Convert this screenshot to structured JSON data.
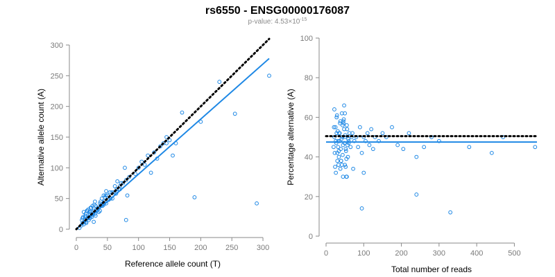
{
  "title": "rs6550 - ENSG00000176087",
  "subtitle_prefix": "p-value: 4.53×10",
  "subtitle_exp": "-15",
  "colors": {
    "points": "#1e88e5",
    "fit": "#1e88e5",
    "reference": "#000000",
    "axis": "#8a8a8a"
  },
  "chart_data": [
    {
      "type": "scatter",
      "xlabel": "Reference allele count (T)",
      "ylabel": "Alternative allele count (A)",
      "xlim": [
        0,
        310
      ],
      "ylim": [
        0,
        300
      ],
      "xticks": [
        0,
        50,
        100,
        150,
        200,
        250,
        300
      ],
      "yticks": [
        0,
        50,
        100,
        150,
        200,
        250,
        300
      ],
      "grid": false,
      "x_tick_labels": [
        "0",
        "50",
        "100",
        "150",
        "200",
        "250",
        "300"
      ],
      "y_tick_labels": [
        "0",
        "50",
        "100",
        "150",
        "200",
        "250",
        "300"
      ],
      "points": {
        "x": [
          5,
          8,
          10,
          12,
          14,
          16,
          18,
          20,
          22,
          24,
          26,
          28,
          30,
          32,
          35,
          38,
          40,
          42,
          45,
          48,
          50,
          55,
          60,
          65,
          70,
          75,
          80,
          85,
          9,
          11,
          13,
          15,
          17,
          19,
          21,
          23,
          25,
          27,
          29,
          31,
          33,
          36,
          39,
          41,
          44,
          47,
          52,
          57,
          62,
          68,
          12,
          16,
          20,
          24,
          28,
          34,
          44,
          54,
          66,
          78,
          15,
          18,
          22,
          26,
          30,
          36,
          46,
          58,
          70,
          82,
          10,
          14,
          19,
          23,
          27,
          31,
          38,
          48,
          64,
          72,
          95,
          100,
          105,
          110,
          115,
          125,
          130,
          135,
          140,
          145,
          150,
          155,
          160,
          170,
          200,
          230,
          255,
          190,
          290,
          310,
          145,
          80,
          120
        ],
        "y": [
          2,
          6,
          10,
          8,
          15,
          12,
          18,
          20,
          25,
          22,
          28,
          30,
          25,
          32,
          35,
          30,
          40,
          38,
          45,
          42,
          55,
          50,
          60,
          65,
          70,
          75,
          80,
          85,
          15,
          20,
          12,
          25,
          30,
          18,
          28,
          35,
          20,
          25,
          40,
          22,
          30,
          35,
          45,
          50,
          40,
          55,
          48,
          60,
          70,
          65,
          28,
          10,
          15,
          35,
          12,
          32,
          55,
          60,
          78,
          100,
          22,
          30,
          18,
          38,
          45,
          28,
          52,
          50,
          65,
          55,
          18,
          20,
          32,
          28,
          25,
          38,
          42,
          62,
          58,
          75,
          90,
          100,
          110,
          105,
          120,
          125,
          115,
          135,
          140,
          150,
          145,
          120,
          140,
          190,
          175,
          240,
          188,
          52,
          42,
          250,
          140,
          15,
          92
        ]
      },
      "fit_line": {
        "x": [
          0,
          310
        ],
        "y": [
          0,
          278
        ]
      },
      "reference_line": {
        "x": [
          0,
          310
        ],
        "y": [
          0,
          310
        ]
      }
    },
    {
      "type": "scatter",
      "xlabel": "Total number of reads",
      "ylabel": "Percentage alternative (A)",
      "xlim": [
        0,
        560
      ],
      "ylim": [
        0,
        100
      ],
      "xticks": [
        0,
        100,
        200,
        300,
        400,
        500
      ],
      "yticks": [
        0,
        20,
        40,
        60,
        80,
        100
      ],
      "grid": false,
      "x_tick_labels": [
        "0",
        "100",
        "200",
        "300",
        "400",
        "500"
      ],
      "y_tick_labels": [
        "0",
        "20",
        "40",
        "60",
        "80",
        "100"
      ],
      "points": {
        "x": [
          20,
          22,
          25,
          28,
          30,
          32,
          35,
          38,
          40,
          42,
          45,
          48,
          50,
          52,
          55,
          58,
          60,
          62,
          65,
          68,
          24,
          27,
          31,
          34,
          37,
          41,
          44,
          47,
          51,
          54,
          57,
          21,
          23,
          26,
          29,
          33,
          36,
          39,
          43,
          46,
          49,
          53,
          56,
          59,
          26,
          30,
          34,
          38,
          42,
          46,
          50,
          54,
          22,
          28,
          32,
          36,
          40,
          44,
          48,
          52,
          70,
          75,
          80,
          85,
          90,
          95,
          100,
          105,
          110,
          115,
          120,
          125,
          130,
          140,
          150,
          160,
          175,
          190,
          205,
          220,
          240,
          260,
          280,
          300,
          380,
          440,
          470,
          555,
          45,
          55,
          95,
          100,
          60,
          240,
          330,
          50,
          72
        ],
        "y": [
          45,
          50,
          55,
          60,
          42,
          48,
          52,
          58,
          38,
          62,
          46,
          54,
          50,
          44,
          56,
          40,
          48,
          52,
          45,
          50,
          35,
          47,
          53,
          43,
          57,
          49,
          41,
          59,
          51,
          39,
          46,
          55,
          42,
          48,
          61,
          36,
          52,
          44,
          50,
          57,
          47,
          43,
          54,
          49,
          32,
          38,
          40,
          34,
          36,
          58,
          62,
          30,
          64,
          52,
          45,
          48,
          38,
          56,
          66,
          35,
          52,
          48,
          50,
          45,
          55,
          42,
          50,
          48,
          52,
          46,
          54,
          44,
          50,
          48,
          52,
          50,
          55,
          46,
          44,
          52,
          40,
          45,
          50,
          48,
          45,
          42,
          50,
          45,
          30,
          30,
          14,
          32,
          47,
          21,
          12,
          36,
          34
        ]
      },
      "fit_line": {
        "x": [
          0,
          560
        ],
        "y": [
          47.5,
          47.5
        ]
      },
      "reference_line": {
        "x": [
          0,
          560
        ],
        "y": [
          50.5,
          50.5
        ]
      }
    }
  ]
}
